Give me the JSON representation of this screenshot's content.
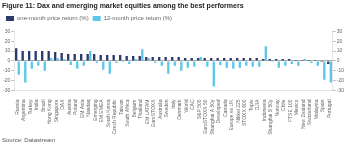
{
  "chart_data": {
    "type": "bar",
    "title": "Figure 11: Dax and emerging market equities among the best performers",
    "annotations": [
      "Source: Datastream"
    ],
    "categories": [
      "Russia",
      "Argentina",
      "Turkey",
      "India",
      "Brazil",
      "Hong Kong",
      "Singapore",
      "DAX",
      "Austria",
      "Poland",
      "EM Asia",
      "Nasdaq",
      "Emerging",
      "EM EMEA",
      "South Korea",
      "Czech Republic",
      "Taiwan",
      "South Africa",
      "Belgium",
      "Thailand",
      "EM LATAM",
      "EuroSTOXX",
      "Australia",
      "Sweden",
      "Italy",
      "Denmark",
      "World",
      "CAC",
      "S&P 500",
      "EuroSTOXX 50",
      "Shanghai A 50y",
      "Developed",
      "Canada",
      "Europe ex UK",
      "Nikkei 225",
      "STOXX 600",
      "Topix",
      "DJIA",
      "Indonesia",
      "Shanghai B 50y",
      "Norway",
      "Chile",
      "FTSE 100",
      "Mexico",
      "New Zealand",
      "Switzerland",
      "Malaysia",
      "Spain",
      "Portugal"
    ],
    "series": [
      {
        "name": "one-month price return (%)",
        "color": "#2b3a6b",
        "values": [
          13,
          10,
          10,
          10,
          10,
          10,
          9,
          8,
          7,
          7,
          7,
          7,
          7,
          6,
          6,
          6,
          6,
          5,
          5,
          5,
          4,
          4,
          4,
          4,
          4,
          4,
          3,
          3,
          3,
          3,
          3,
          3,
          3,
          3,
          3,
          3,
          3,
          3,
          2,
          2,
          2,
          2,
          2,
          1,
          1,
          1,
          1,
          -1,
          -3
        ]
      },
      {
        "name": "12-month price return (%)",
        "color": "#5bc8e8",
        "values": [
          -14,
          -22,
          -8,
          -5,
          -10,
          3,
          3,
          2,
          -4,
          -8,
          -5,
          10,
          -2,
          -9,
          -13,
          -2,
          -1,
          -3,
          2,
          12,
          3,
          -2,
          -5,
          -13,
          -5,
          -10,
          -7,
          -6,
          4,
          -6,
          -26,
          -4,
          -7,
          -8,
          -7,
          -5,
          -6,
          -6,
          15,
          -1,
          -7,
          -5,
          -3,
          -5,
          2,
          -2,
          -5,
          -19,
          -22
        ]
      }
    ],
    "ylim": [
      -30,
      30
    ],
    "yticks": [
      -30,
      -20,
      -10,
      0,
      10,
      20,
      30
    ],
    "y2lim": [
      -30,
      30
    ],
    "y2ticks": [
      -30,
      -20,
      -10,
      0,
      10,
      20,
      30
    ],
    "grid": false,
    "legend": "top"
  }
}
